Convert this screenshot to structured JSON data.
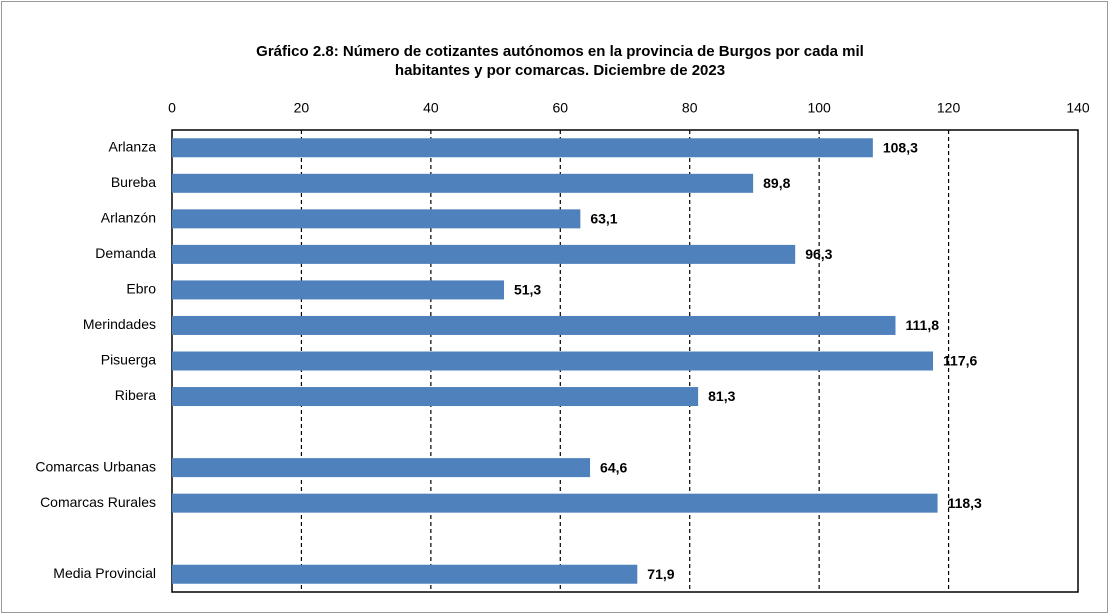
{
  "chart_data": {
    "type": "bar",
    "orientation": "horizontal",
    "title": [
      "Gráfico 2.8: Número de cotizantes autónomos en la provincia de Burgos por cada mil",
      "habitantes y por comarcas. Diciembre de 2023"
    ],
    "categories": [
      "Arlanza",
      "Bureba",
      "Arlanzón",
      "Demanda",
      "Ebro",
      "Merindades",
      "Pisuerga",
      "Ribera",
      null,
      "Comarcas Urbanas",
      "Comarcas Rurales",
      null,
      "Media Provincial"
    ],
    "values": [
      108.3,
      89.8,
      63.1,
      96.3,
      51.3,
      111.8,
      117.6,
      81.3,
      null,
      64.6,
      118.3,
      null,
      71.9
    ],
    "value_labels": [
      "108,3",
      "89,8",
      "63,1",
      "96,3",
      "51,3",
      "111,8",
      "117,6",
      "81,3",
      null,
      "64,6",
      "118,3",
      null,
      "71,9"
    ],
    "color": "#4f81bd",
    "xlim": [
      0,
      140
    ],
    "xticks": [
      0,
      20,
      40,
      60,
      80,
      100,
      120,
      140
    ],
    "grid": true
  }
}
